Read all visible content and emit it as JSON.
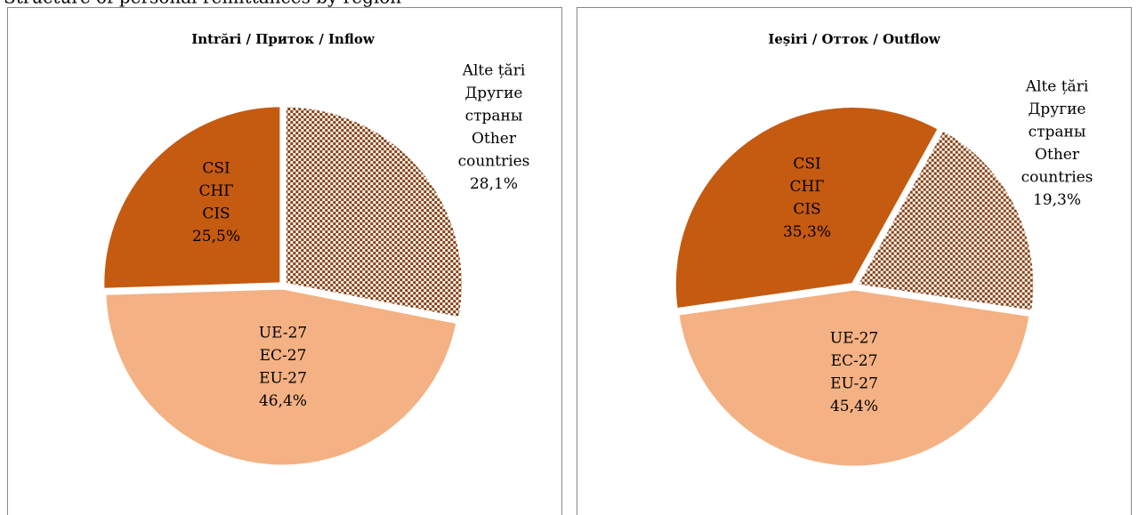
{
  "page_title": "Structure of personal remittances by region",
  "chart_data": [
    {
      "type": "pie",
      "title": "Intrări / Приток / Inflow",
      "categories": [
        [
          "Alte țări",
          "Другие",
          "страны",
          "Other",
          "countries"
        ],
        [
          "UE-27",
          "EC-27",
          "EU-27"
        ],
        [
          "CSI",
          "СНГ",
          "CIS"
        ]
      ],
      "values": [
        28.1,
        46.4,
        25.5
      ],
      "value_labels": [
        "28,1%",
        "46,4%",
        "25,5%"
      ],
      "colors": [
        "pattern",
        "#f4b183",
        "#c55a11"
      ],
      "start_angle": 0
    },
    {
      "type": "pie",
      "title": "Ieșiri / Отток / Outflow",
      "categories": [
        [
          "Alte țări",
          "Другие",
          "страны",
          "Other",
          "countries"
        ],
        [
          "UE-27",
          "EC-27",
          "EU-27"
        ],
        [
          "CSI",
          "СНГ",
          "CIS"
        ]
      ],
      "values": [
        19.3,
        45.4,
        35.3
      ],
      "value_labels": [
        "19,3%",
        "45,4%",
        "35,3%"
      ],
      "colors": [
        "pattern",
        "#f4b183",
        "#c55a11"
      ],
      "start_angle": 29
    }
  ]
}
